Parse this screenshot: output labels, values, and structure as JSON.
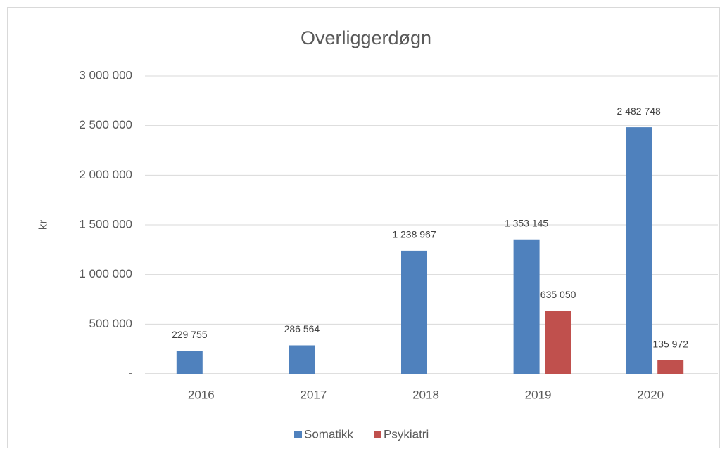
{
  "chart_data": {
    "type": "bar",
    "title": "Overliggerdøgn",
    "y_label": "kr",
    "categories": [
      "2016",
      "2017",
      "2018",
      "2019",
      "2020"
    ],
    "series": [
      {
        "name": "Somatikk",
        "color": "#4f81bd",
        "values": [
          229755,
          286564,
          1238967,
          1353145,
          2482748
        ],
        "value_labels": [
          "229 755",
          "286 564",
          "1 238 967",
          "1 353 145",
          "2 482 748"
        ]
      },
      {
        "name": "Psykiatri",
        "color": "#c0504d",
        "values": [
          null,
          null,
          null,
          635050,
          135972
        ],
        "value_labels": [
          null,
          null,
          null,
          "635 050",
          "135 972"
        ]
      }
    ],
    "ylim": [
      0,
      3000000
    ],
    "yticks": [
      {
        "value": 0,
        "label": "-"
      },
      {
        "value": 500000,
        "label": "500 000"
      },
      {
        "value": 1000000,
        "label": "1 000 000"
      },
      {
        "value": 1500000,
        "label": "1 500 000"
      },
      {
        "value": 2000000,
        "label": "2 000 000"
      },
      {
        "value": 2500000,
        "label": "2 500 000"
      },
      {
        "value": 3000000,
        "label": "3 000 000"
      }
    ],
    "grid": true,
    "legend": "bottom"
  }
}
